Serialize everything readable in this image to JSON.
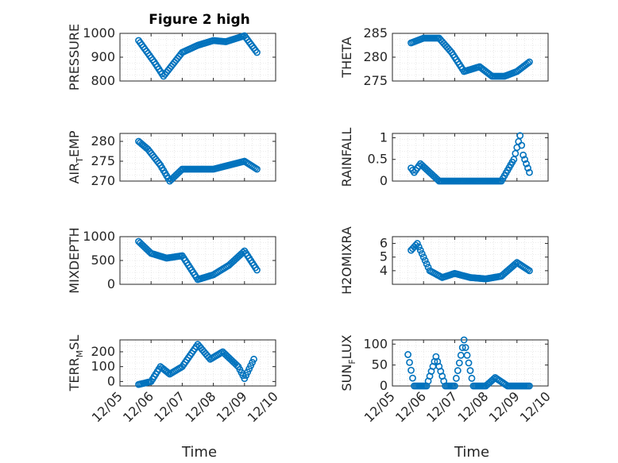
{
  "figure": {
    "title": "Figure 2 high",
    "marker_color": "#0072bd",
    "xlabel": "Time",
    "xticks": [
      "12/05",
      "12/06",
      "12/07",
      "12/08",
      "12/09",
      "12/10"
    ]
  },
  "chart_data": [
    {
      "type": "scatter",
      "id": "pressure",
      "ylabel_main": "PRESSURE",
      "ylabel_sub": "",
      "ylabel_tail": "",
      "ylim": [
        800,
        1000
      ],
      "yticks": [
        800,
        900,
        1000
      ],
      "x": [
        5.6,
        6.1,
        6.4,
        7.0,
        7.5,
        8.0,
        8.4,
        9.0,
        9.4
      ],
      "y": [
        970,
        880,
        820,
        920,
        950,
        970,
        965,
        990,
        920
      ]
    },
    {
      "type": "scatter",
      "id": "theta",
      "ylabel_main": "THETA",
      "ylabel_sub": "",
      "ylabel_tail": "",
      "ylim": [
        275,
        285
      ],
      "yticks": [
        275,
        280,
        285
      ],
      "x": [
        5.6,
        6.0,
        6.5,
        6.9,
        7.3,
        7.8,
        8.2,
        8.6,
        9.0,
        9.4
      ],
      "y": [
        283,
        284,
        284,
        281,
        277,
        278,
        276,
        276,
        277,
        279
      ]
    },
    {
      "type": "scatter",
      "id": "air_temp",
      "ylabel_main": "AIR",
      "ylabel_sub": "T",
      "ylabel_tail": "EMP",
      "ylim": [
        270,
        282
      ],
      "yticks": [
        270,
        275,
        280
      ],
      "x": [
        5.6,
        5.9,
        6.3,
        6.6,
        7.0,
        7.5,
        8.0,
        8.5,
        9.0,
        9.4
      ],
      "y": [
        280,
        278,
        274,
        270,
        273,
        273,
        273,
        274,
        275,
        273
      ]
    },
    {
      "type": "scatter",
      "id": "rainfall",
      "ylabel_main": "RAINFALL",
      "ylabel_sub": "",
      "ylabel_tail": "",
      "ylim": [
        0,
        1.1
      ],
      "yticks": [
        0,
        0.5,
        1
      ],
      "x": [
        5.6,
        5.7,
        5.9,
        6.5,
        7.0,
        7.5,
        8.0,
        8.5,
        8.9,
        9.1,
        9.2,
        9.4
      ],
      "y": [
        0.3,
        0.2,
        0.4,
        0,
        0,
        0,
        0,
        0,
        0.5,
        1.05,
        0.6,
        0.2
      ]
    },
    {
      "type": "scatter",
      "id": "mixdepth",
      "ylabel_main": "MIXDEPTH",
      "ylabel_sub": "",
      "ylabel_tail": "",
      "ylim": [
        0,
        1000
      ],
      "yticks": [
        0,
        500,
        1000
      ],
      "x": [
        5.6,
        6.0,
        6.5,
        7.0,
        7.5,
        8.0,
        8.5,
        9.0,
        9.4
      ],
      "y": [
        900,
        650,
        550,
        600,
        100,
        200,
        400,
        700,
        300
      ]
    },
    {
      "type": "scatter",
      "id": "h2omixra",
      "ylabel_main": "H2OMIXRA",
      "ylabel_sub": "",
      "ylabel_tail": "",
      "ylim": [
        3,
        6.5
      ],
      "yticks": [
        4,
        5,
        6
      ],
      "x": [
        5.6,
        5.8,
        6.2,
        6.6,
        7.0,
        7.5,
        8.0,
        8.5,
        9.0,
        9.4
      ],
      "y": [
        5.5,
        6.0,
        4.0,
        3.5,
        3.8,
        3.5,
        3.4,
        3.6,
        4.6,
        4.0
      ]
    },
    {
      "type": "scatter",
      "id": "terr_msl",
      "ylabel_main": "TERR",
      "ylabel_sub": "M",
      "ylabel_tail": "SL",
      "ylim": [
        -30,
        280
      ],
      "yticks": [
        0,
        100,
        200
      ],
      "x": [
        5.6,
        6.0,
        6.3,
        6.6,
        7.0,
        7.5,
        7.9,
        8.3,
        8.8,
        9.0,
        9.3
      ],
      "y": [
        -20,
        0,
        100,
        50,
        100,
        250,
        150,
        200,
        100,
        20,
        150
      ]
    },
    {
      "type": "scatter",
      "id": "sun_flux",
      "ylabel_main": "SUN",
      "ylabel_sub": "F",
      "ylabel_tail": "LUX",
      "ylim": [
        0,
        110
      ],
      "yticks": [
        0,
        50,
        100
      ],
      "x": [
        5.5,
        5.7,
        6.1,
        6.4,
        6.7,
        7.0,
        7.3,
        7.6,
        8.0,
        8.3,
        8.7,
        9.0,
        9.4
      ],
      "y": [
        75,
        0,
        0,
        70,
        0,
        0,
        110,
        0,
        0,
        20,
        0,
        0,
        0
      ]
    }
  ]
}
